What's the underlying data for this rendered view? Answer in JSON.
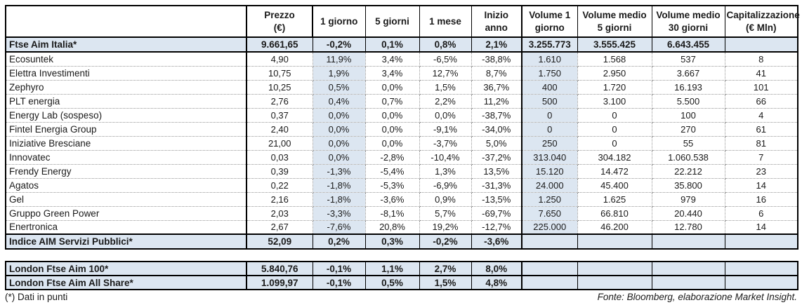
{
  "colors": {
    "highlight": "#dce6f1",
    "border_dark": "#000000",
    "border_dotted": "#969696",
    "text": "#1a1a1a"
  },
  "headers": [
    {
      "line1": "",
      "line2": ""
    },
    {
      "line1": "Prezzo",
      "line2": "(€)"
    },
    {
      "line1": "1 giorno",
      "line2": ""
    },
    {
      "line1": "5 giorni",
      "line2": ""
    },
    {
      "line1": "1 mese",
      "line2": ""
    },
    {
      "line1": "Inizio anno",
      "line2": ""
    },
    {
      "line1": "Volume 1",
      "line2": "giorno"
    },
    {
      "line1": "Volume medio",
      "line2": "5 giorni"
    },
    {
      "line1": "Volume medio",
      "line2": "30 giorni"
    },
    {
      "line1": "Capitalizzazione",
      "line2": "(€ Mln)"
    }
  ],
  "main_rows": [
    {
      "name": "Ftse Aim Italia*",
      "style": "index",
      "values": [
        "9.661,65",
        "-0,2%",
        "0,1%",
        "0,8%",
        "2,1%",
        "3.255.773",
        "3.555.425",
        "6.643.455",
        ""
      ]
    },
    {
      "name": "Ecosuntek",
      "style": "stock",
      "values": [
        "4,90",
        "11,9%",
        "3,4%",
        "-6,5%",
        "-38,8%",
        "1.610",
        "1.568",
        "537",
        "8"
      ]
    },
    {
      "name": "Elettra Investimenti",
      "style": "stock",
      "values": [
        "10,75",
        "1,9%",
        "3,4%",
        "12,7%",
        "8,7%",
        "1.750",
        "2.950",
        "3.667",
        "41"
      ]
    },
    {
      "name": "Zephyro",
      "style": "stock",
      "values": [
        "10,25",
        "0,5%",
        "0,0%",
        "1,5%",
        "36,7%",
        "400",
        "1.720",
        "16.193",
        "101"
      ]
    },
    {
      "name": "PLT energia",
      "style": "stock",
      "values": [
        "2,76",
        "0,4%",
        "0,7%",
        "2,2%",
        "11,2%",
        "500",
        "3.100",
        "5.500",
        "66"
      ]
    },
    {
      "name": "Energy Lab (sospeso)",
      "style": "stock",
      "values": [
        "0,37",
        "0,0%",
        "0,0%",
        "0,0%",
        "-38,7%",
        "0",
        "0",
        "100",
        "4"
      ]
    },
    {
      "name": "Fintel Energia Group",
      "style": "stock",
      "values": [
        "2,40",
        "0,0%",
        "0,0%",
        "-9,1%",
        "-34,0%",
        "0",
        "0",
        "270",
        "61"
      ]
    },
    {
      "name": "Iniziative Bresciane",
      "style": "stock",
      "values": [
        "21,00",
        "0,0%",
        "0,0%",
        "-3,7%",
        "5,0%",
        "250",
        "0",
        "55",
        "81"
      ]
    },
    {
      "name": "Innovatec",
      "style": "stock",
      "values": [
        "0,03",
        "0,0%",
        "-2,8%",
        "-10,4%",
        "-37,2%",
        "313.040",
        "304.182",
        "1.060.538",
        "7"
      ]
    },
    {
      "name": "Frendy Energy",
      "style": "stock",
      "values": [
        "0,39",
        "-1,3%",
        "-5,4%",
        "1,3%",
        "13,5%",
        "15.120",
        "14.472",
        "22.212",
        "23"
      ]
    },
    {
      "name": "Agatos",
      "style": "stock",
      "values": [
        "0,22",
        "-1,8%",
        "-5,3%",
        "-6,9%",
        "-31,3%",
        "24.000",
        "45.400",
        "35.800",
        "14"
      ]
    },
    {
      "name": "Gel",
      "style": "stock",
      "values": [
        "2,16",
        "-1,8%",
        "-3,6%",
        "0,9%",
        "-13,5%",
        "1.250",
        "1.625",
        "979",
        "16"
      ]
    },
    {
      "name": "Gruppo Green Power",
      "style": "stock",
      "values": [
        "2,03",
        "-3,3%",
        "-8,1%",
        "5,7%",
        "-69,7%",
        "7.650",
        "66.810",
        "20.440",
        "6"
      ]
    },
    {
      "name": "Enertronica",
      "style": "stock",
      "values": [
        "2,67",
        "-7,6%",
        "20,8%",
        "19,2%",
        "-12,7%",
        "225.000",
        "46.200",
        "12.780",
        "14"
      ]
    },
    {
      "name": "Indice AIM Servizi Pubblici*",
      "style": "index",
      "values": [
        "52,09",
        "0,2%",
        "0,3%",
        "-0,2%",
        "-3,6%",
        "",
        "",
        "",
        ""
      ]
    }
  ],
  "london_rows": [
    {
      "name": "London Ftse Aim 100*",
      "style": "index",
      "values": [
        "5.840,76",
        "-0,1%",
        "1,1%",
        "2,7%",
        "8,0%",
        "",
        "",
        "",
        ""
      ]
    },
    {
      "name": "London Ftse Aim All Share*",
      "style": "index",
      "values": [
        "1.099,97",
        "-0,1%",
        "0,5%",
        "1,5%",
        "4,8%",
        "",
        "",
        "",
        ""
      ]
    }
  ],
  "footer": {
    "footnote": "(*) Dati in punti",
    "source": "Fonte: Bloomberg, elaborazione Market Insight."
  }
}
